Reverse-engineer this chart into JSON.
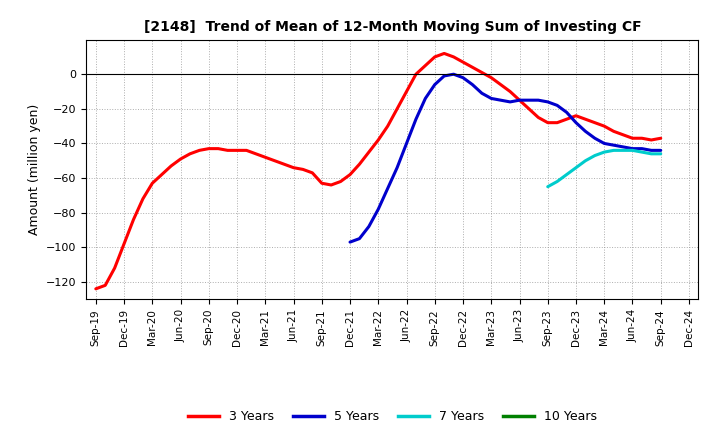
{
  "title": "[2148]  Trend of Mean of 12-Month Moving Sum of Investing CF",
  "ylabel": "Amount (million yen)",
  "ylim": [
    -130,
    20
  ],
  "yticks": [
    -120,
    -100,
    -80,
    -60,
    -40,
    -20,
    0
  ],
  "background_color": "#ffffff",
  "grid_color": "#999999",
  "series": {
    "3yr": {
      "color": "#ff0000",
      "label": "3 Years",
      "x": [
        0,
        1,
        2,
        3,
        4,
        5,
        6,
        7,
        8,
        9,
        10,
        11,
        12,
        13,
        14,
        15,
        16,
        17,
        18,
        19,
        20,
        21,
        22,
        23,
        24,
        25,
        26,
        27,
        28,
        29,
        30,
        31,
        32,
        33,
        34,
        35,
        36,
        37,
        38,
        39,
        40,
        41,
        42,
        43,
        44,
        45,
        46,
        47,
        48,
        49,
        50,
        51,
        52,
        53,
        54,
        55,
        56,
        57,
        58,
        59,
        60
      ],
      "y": [
        -124,
        -122,
        -112,
        -98,
        -84,
        -72,
        -63,
        -58,
        -53,
        -49,
        -46,
        -44,
        -43,
        -43,
        -44,
        -44,
        -44,
        -46,
        -48,
        -50,
        -52,
        -54,
        -55,
        -57,
        -63,
        -64,
        -62,
        -58,
        -52,
        -45,
        -38,
        -30,
        -20,
        -10,
        0,
        5,
        10,
        12,
        10,
        7,
        4,
        1,
        -2,
        -6,
        -10,
        -15,
        -20,
        -25,
        -28,
        -28,
        -26,
        -24,
        -26,
        -28,
        -30,
        -33,
        -35,
        -37,
        -37,
        -38,
        -37
      ]
    },
    "5yr": {
      "color": "#0000cc",
      "label": "5 Years",
      "x": [
        27,
        28,
        29,
        30,
        31,
        32,
        33,
        34,
        35,
        36,
        37,
        38,
        39,
        40,
        41,
        42,
        43,
        44,
        45,
        46,
        47,
        48,
        49,
        50,
        51,
        52,
        53,
        54,
        55,
        56,
        57,
        58,
        59,
        60
      ],
      "y": [
        -97,
        -95,
        -88,
        -78,
        -66,
        -54,
        -40,
        -26,
        -14,
        -6,
        -1,
        0,
        -2,
        -6,
        -11,
        -14,
        -15,
        -16,
        -15,
        -15,
        -15,
        -16,
        -18,
        -22,
        -28,
        -33,
        -37,
        -40,
        -41,
        -42,
        -43,
        -43,
        -44,
        -44
      ]
    },
    "7yr": {
      "color": "#00cccc",
      "label": "7 Years",
      "x": [
        48,
        49,
        50,
        51,
        52,
        53,
        54,
        55,
        56,
        57,
        58,
        59,
        60
      ],
      "y": [
        -65,
        -62,
        -58,
        -54,
        -50,
        -47,
        -45,
        -44,
        -44,
        -44,
        -45,
        -46,
        -46
      ]
    },
    "10yr": {
      "color": "#008000",
      "label": "10 Years",
      "x": [],
      "y": []
    }
  },
  "x_tick_positions": [
    0,
    3,
    6,
    9,
    12,
    15,
    18,
    21,
    24,
    27,
    30,
    33,
    36,
    39,
    42,
    45,
    48,
    51,
    54,
    57,
    60,
    63
  ],
  "x_tick_labels": [
    "Sep-19",
    "Dec-19",
    "Mar-20",
    "Jun-20",
    "Sep-20",
    "Dec-20",
    "Mar-21",
    "Jun-21",
    "Sep-21",
    "Dec-21",
    "Mar-22",
    "Jun-22",
    "Sep-22",
    "Dec-22",
    "Mar-23",
    "Jun-23",
    "Sep-23",
    "Dec-23",
    "Mar-24",
    "Jun-24",
    "Sep-24",
    "Dec-24"
  ],
  "legend_entries": [
    "3 Years",
    "5 Years",
    "7 Years",
    "10 Years"
  ],
  "legend_colors": [
    "#ff0000",
    "#0000cc",
    "#00cccc",
    "#008000"
  ]
}
